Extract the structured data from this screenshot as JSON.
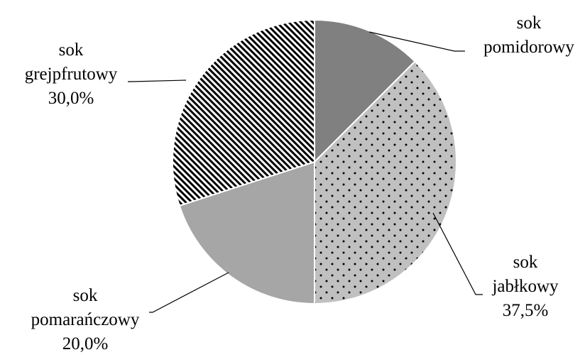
{
  "chart_data": {
    "type": "pie",
    "start_angle_deg": 0,
    "direction": "clockwise",
    "slices": [
      {
        "name": "sok pomidorowy",
        "label_lines": [
          "sok",
          "pomidorowy"
        ],
        "value": 12.5,
        "value_label": "",
        "fill": "#808080",
        "pattern": "solid"
      },
      {
        "name": "sok jabłkowy",
        "label_lines": [
          "sok",
          "jabłkowy"
        ],
        "value": 37.5,
        "value_label": "37,5%",
        "fill": "#c0c0c0",
        "pattern": "dots"
      },
      {
        "name": "sok pomarańczowy",
        "label_lines": [
          "sok",
          "pomarańczowy"
        ],
        "value": 20.0,
        "value_label": "20,0%",
        "fill": "#a6a6a6",
        "pattern": "solid"
      },
      {
        "name": "sok grejpfrutowy",
        "label_lines": [
          "sok",
          "grejpfrutowy"
        ],
        "value": 30.0,
        "value_label": "30,0%",
        "fill": "#ffffff",
        "pattern": "diagonal-stripes"
      }
    ],
    "title": "",
    "legend": "none",
    "stroke_color": "#ffffff"
  }
}
